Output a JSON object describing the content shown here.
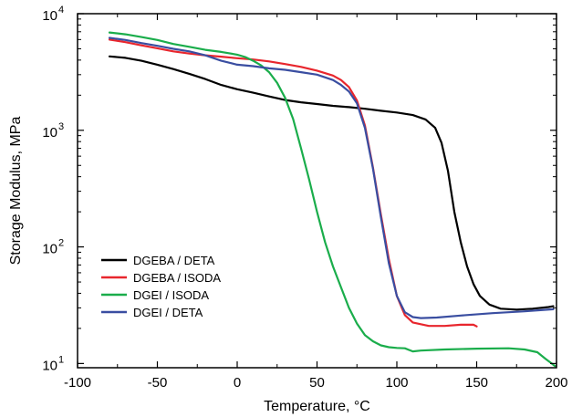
{
  "chart_data": {
    "type": "line",
    "xlabel": "Temperature, °C",
    "ylabel": "Storage Modulus, MPa",
    "xlim": [
      -100,
      200
    ],
    "ylim": [
      9.2,
      10000
    ],
    "yscale": "log",
    "grid": false,
    "legend_position": "bottom-left",
    "x_ticks": [
      {
        "value": -100,
        "label": "-100"
      },
      {
        "value": -50,
        "label": "-50"
      },
      {
        "value": 0,
        "label": "0"
      },
      {
        "value": 50,
        "label": "50"
      },
      {
        "value": 100,
        "label": "100"
      },
      {
        "value": 150,
        "label": "150"
      },
      {
        "value": 200,
        "label": "200"
      }
    ],
    "y_ticks": [
      {
        "value": 10,
        "base": "10",
        "exp": "1"
      },
      {
        "value": 100,
        "base": "10",
        "exp": "2"
      },
      {
        "value": 1000,
        "base": "10",
        "exp": "3"
      },
      {
        "value": 10000,
        "base": "10",
        "exp": "4"
      }
    ],
    "series": [
      {
        "name": "DGEBA / DETA",
        "color": "#000000",
        "points": [
          [
            -80,
            4300
          ],
          [
            -70,
            4180
          ],
          [
            -60,
            3950
          ],
          [
            -50,
            3650
          ],
          [
            -40,
            3350
          ],
          [
            -30,
            3050
          ],
          [
            -20,
            2750
          ],
          [
            -10,
            2450
          ],
          [
            0,
            2250
          ],
          [
            10,
            2100
          ],
          [
            20,
            1950
          ],
          [
            30,
            1820
          ],
          [
            40,
            1740
          ],
          [
            50,
            1680
          ],
          [
            60,
            1620
          ],
          [
            70,
            1580
          ],
          [
            80,
            1530
          ],
          [
            90,
            1470
          ],
          [
            100,
            1420
          ],
          [
            110,
            1350
          ],
          [
            118,
            1240
          ],
          [
            124,
            1050
          ],
          [
            128,
            780
          ],
          [
            132,
            450
          ],
          [
            136,
            200
          ],
          [
            140,
            110
          ],
          [
            144,
            68
          ],
          [
            148,
            48
          ],
          [
            152,
            38
          ],
          [
            158,
            32
          ],
          [
            165,
            29.5
          ],
          [
            175,
            29
          ],
          [
            185,
            29.5
          ],
          [
            195,
            30.5
          ],
          [
            198,
            31
          ]
        ]
      },
      {
        "name": "DGEBA / ISODA",
        "color": "#e8262d",
        "points": [
          [
            -80,
            6000
          ],
          [
            -70,
            5700
          ],
          [
            -60,
            5350
          ],
          [
            -50,
            5050
          ],
          [
            -40,
            4750
          ],
          [
            -30,
            4550
          ],
          [
            -20,
            4400
          ],
          [
            -10,
            4280
          ],
          [
            0,
            4150
          ],
          [
            10,
            4050
          ],
          [
            20,
            3900
          ],
          [
            30,
            3700
          ],
          [
            40,
            3500
          ],
          [
            50,
            3250
          ],
          [
            60,
            2950
          ],
          [
            65,
            2700
          ],
          [
            70,
            2350
          ],
          [
            75,
            1800
          ],
          [
            80,
            1100
          ],
          [
            85,
            480
          ],
          [
            90,
            190
          ],
          [
            95,
            78
          ],
          [
            100,
            38
          ],
          [
            105,
            26
          ],
          [
            110,
            22.5
          ],
          [
            120,
            21
          ],
          [
            130,
            21
          ],
          [
            140,
            21.5
          ],
          [
            148,
            21.5
          ],
          [
            150,
            20.8
          ]
        ]
      },
      {
        "name": "DGEI / ISODA",
        "color": "#1aad4b",
        "points": [
          [
            -80,
            6900
          ],
          [
            -70,
            6650
          ],
          [
            -60,
            6300
          ],
          [
            -50,
            5950
          ],
          [
            -40,
            5500
          ],
          [
            -30,
            5200
          ],
          [
            -20,
            4900
          ],
          [
            -10,
            4700
          ],
          [
            0,
            4450
          ],
          [
            5,
            4250
          ],
          [
            10,
            3950
          ],
          [
            15,
            3600
          ],
          [
            20,
            3150
          ],
          [
            25,
            2550
          ],
          [
            30,
            1900
          ],
          [
            35,
            1250
          ],
          [
            40,
            700
          ],
          [
            45,
            380
          ],
          [
            50,
            200
          ],
          [
            55,
            110
          ],
          [
            60,
            68
          ],
          [
            65,
            45
          ],
          [
            70,
            30
          ],
          [
            75,
            22
          ],
          [
            80,
            17.5
          ],
          [
            85,
            15.5
          ],
          [
            90,
            14.3
          ],
          [
            95,
            13.8
          ],
          [
            100,
            13.6
          ],
          [
            105,
            13.5
          ],
          [
            110,
            12.7
          ],
          [
            115,
            12.9
          ],
          [
            130,
            13.2
          ],
          [
            150,
            13.4
          ],
          [
            170,
            13.5
          ],
          [
            180,
            13.2
          ],
          [
            188,
            12.5
          ],
          [
            193,
            11
          ],
          [
            197,
            10
          ],
          [
            199,
            9.5
          ]
        ]
      },
      {
        "name": "DGEI / DETA",
        "color": "#3a4ea1",
        "points": [
          [
            -80,
            6200
          ],
          [
            -70,
            5950
          ],
          [
            -60,
            5600
          ],
          [
            -50,
            5300
          ],
          [
            -40,
            5000
          ],
          [
            -30,
            4750
          ],
          [
            -20,
            4400
          ],
          [
            -10,
            3950
          ],
          [
            0,
            3650
          ],
          [
            10,
            3550
          ],
          [
            20,
            3400
          ],
          [
            30,
            3300
          ],
          [
            40,
            3150
          ],
          [
            50,
            3000
          ],
          [
            60,
            2700
          ],
          [
            65,
            2450
          ],
          [
            70,
            2150
          ],
          [
            75,
            1700
          ],
          [
            80,
            1050
          ],
          [
            85,
            470
          ],
          [
            90,
            180
          ],
          [
            95,
            72
          ],
          [
            100,
            38
          ],
          [
            105,
            27.5
          ],
          [
            110,
            25
          ],
          [
            115,
            24.5
          ],
          [
            125,
            24.8
          ],
          [
            140,
            25.8
          ],
          [
            160,
            27
          ],
          [
            180,
            28
          ],
          [
            198,
            29.2
          ]
        ]
      }
    ]
  }
}
